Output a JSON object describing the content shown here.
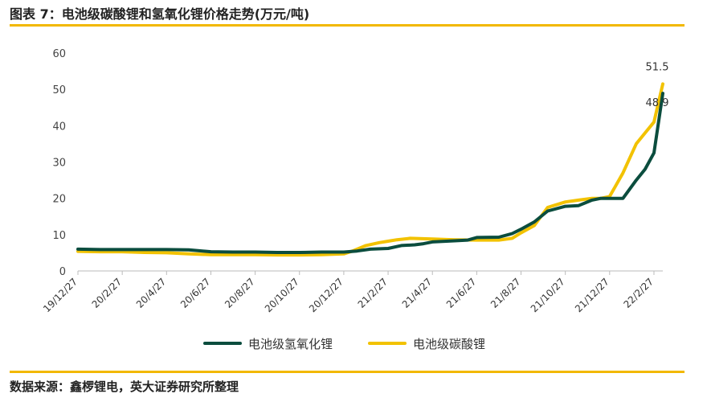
{
  "header": {
    "title": "图表 7：电池级碳酸锂和氢氧化锂价格走势(万元/吨)"
  },
  "footer": {
    "source": "数据来源：鑫椤锂电，英大证券研究所整理"
  },
  "chart_data": {
    "type": "line",
    "title": "图表 7：电池级碳酸锂和氢氧化锂价格走势(万元/吨)",
    "xlabel": "",
    "ylabel": "",
    "ylim": [
      0,
      60
    ],
    "yticks": [
      0,
      10,
      20,
      30,
      40,
      50,
      60
    ],
    "grid": false,
    "legend": "bottom",
    "categories": [
      "19/12/27",
      "20/2/27",
      "20/4/27",
      "20/6/27",
      "20/8/27",
      "20/10/27",
      "20/12/27",
      "21/2/27",
      "21/4/27",
      "21/6/27",
      "21/8/27",
      "21/10/27",
      "21/12/27",
      "22/2/27"
    ],
    "series": [
      {
        "name": "电池级氢氧化锂",
        "color": "#0b4d3e",
        "x": [
          0,
          0.5,
          1,
          1.5,
          2,
          2.5,
          3,
          3.5,
          4,
          4.5,
          5,
          5.5,
          6,
          6.3,
          6.6,
          7,
          7.3,
          7.6,
          7.8,
          8,
          8.5,
          8.8,
          9,
          9.5,
          9.8,
          10,
          10.3,
          10.6,
          11,
          11.3,
          11.6,
          11.8,
          12,
          12.3,
          12.6,
          12.8,
          13,
          13.2
        ],
        "values": [
          6,
          5.9,
          5.9,
          5.9,
          5.9,
          5.8,
          5.3,
          5.2,
          5.2,
          5.1,
          5.1,
          5.2,
          5.2,
          5.5,
          6,
          6.2,
          7,
          7.2,
          7.5,
          8,
          8.3,
          8.5,
          9.2,
          9.3,
          10.3,
          11.5,
          13.5,
          16.5,
          17.8,
          18,
          19.5,
          20,
          20,
          20,
          25,
          28,
          32.5,
          48.9
        ]
      },
      {
        "name": "电池级碳酸锂",
        "color": "#f2c200",
        "x": [
          0,
          0.5,
          1,
          1.5,
          2,
          2.5,
          3,
          3.5,
          4,
          4.5,
          5,
          5.5,
          6,
          6.2,
          6.5,
          6.8,
          7,
          7.2,
          7.5,
          8,
          8.5,
          9,
          9.5,
          9.8,
          10,
          10.3,
          10.6,
          11,
          11.3,
          11.6,
          11.8,
          12,
          12.3,
          12.6,
          12.8,
          13,
          13.2
        ],
        "values": [
          5.4,
          5.3,
          5.3,
          5.1,
          5,
          4.7,
          4.5,
          4.5,
          4.5,
          4.4,
          4.4,
          4.5,
          4.7,
          5.5,
          7,
          7.8,
          8.2,
          8.6,
          9,
          8.8,
          8.6,
          8.5,
          8.5,
          9,
          10.5,
          12.5,
          17.5,
          19,
          19.5,
          20,
          20,
          20.5,
          27,
          35,
          38,
          41,
          51.5
        ]
      }
    ],
    "annotations": [
      {
        "series": "电池级碳酸锂",
        "label": "51.5"
      },
      {
        "series": "电池级氢氧化锂",
        "label": "48.9"
      }
    ]
  }
}
